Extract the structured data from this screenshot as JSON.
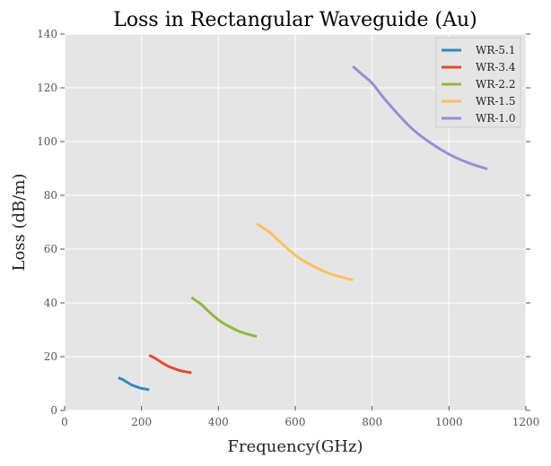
{
  "chart_data": {
    "type": "line",
    "title": "Loss in Rectangular Waveguide (Au)",
    "xlabel": "Frequency(GHz)",
    "ylabel": "Loss (dB/m)",
    "xlim": [
      0,
      1200
    ],
    "ylim": [
      0,
      140
    ],
    "xticks": [
      0,
      200,
      400,
      600,
      800,
      1000,
      1200
    ],
    "yticks": [
      0,
      20,
      40,
      60,
      80,
      100,
      120,
      140
    ],
    "grid": true,
    "legend_position": "top-right",
    "series": [
      {
        "name": "WR-5.1",
        "color": "#348ABD",
        "x": [
          140,
          145.6,
          151.4,
          160,
          174.3,
          185.7,
          197.1,
          208.6,
          220
        ],
        "y": [
          12.2,
          11.8,
          11.5,
          10.7,
          9.5,
          8.9,
          8.3,
          8.0,
          7.7
        ]
      },
      {
        "name": "WR-3.4",
        "color": "#E24A33",
        "x": [
          220,
          227.7,
          235.7,
          247.5,
          267.2,
          282.8,
          298.5,
          314.3,
          330
        ],
        "y": [
          20.5,
          20.0,
          19.4,
          18.3,
          16.6,
          15.7,
          14.9,
          14.4,
          14.0
        ]
      },
      {
        "name": "WR-2.2",
        "color": "#8EBA42",
        "x": [
          330,
          341.9,
          354.3,
          372.5,
          402.9,
          427.1,
          451.4,
          475.7,
          500
        ],
        "y": [
          42.0,
          40.8,
          39.6,
          37.1,
          33.4,
          31.3,
          29.6,
          28.4,
          27.5
        ]
      },
      {
        "name": "WR-1.5",
        "color": "#FBC15E",
        "x": [
          500,
          517.5,
          535.8,
          562.5,
          607.3,
          642.8,
          678.5,
          714.3,
          750
        ],
        "y": [
          69.5,
          67.8,
          66.0,
          62.4,
          57.0,
          54.0,
          51.5,
          49.8,
          48.5
        ]
      },
      {
        "name": "WR-1.0",
        "color": "#988ED5",
        "x": [
          750,
          774.5,
          800,
          837.5,
          900,
          950,
          1000,
          1050,
          1100
        ],
        "y": [
          128.0,
          124.9,
          121.7,
          115.0,
          105.3,
          99.7,
          95.3,
          92.1,
          89.8
        ]
      }
    ]
  }
}
